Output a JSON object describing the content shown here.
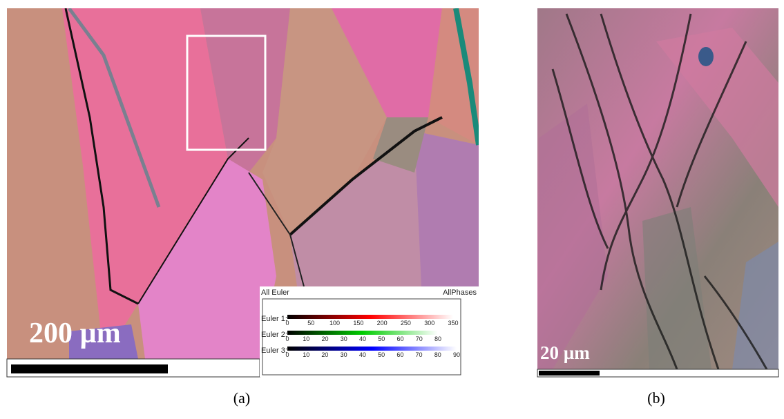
{
  "panel_a": {
    "scale_label": "200 µm",
    "caption": "(a)",
    "legend": {
      "title": "All Euler",
      "phases": "AllPhases",
      "bars": [
        {
          "label": "Euler 1:",
          "ticks": [
            0,
            50,
            100,
            150,
            200,
            250,
            300,
            350
          ]
        },
        {
          "label": "Euler 2:",
          "ticks": [
            0,
            10,
            20,
            30,
            40,
            50,
            60,
            70,
            80
          ]
        },
        {
          "label": "Euler 3:",
          "ticks": [
            0,
            10,
            20,
            30,
            40,
            50,
            60,
            70,
            80,
            90
          ]
        }
      ]
    }
  },
  "panel_b": {
    "scale_label": "20 µm",
    "caption": "(b)"
  }
}
